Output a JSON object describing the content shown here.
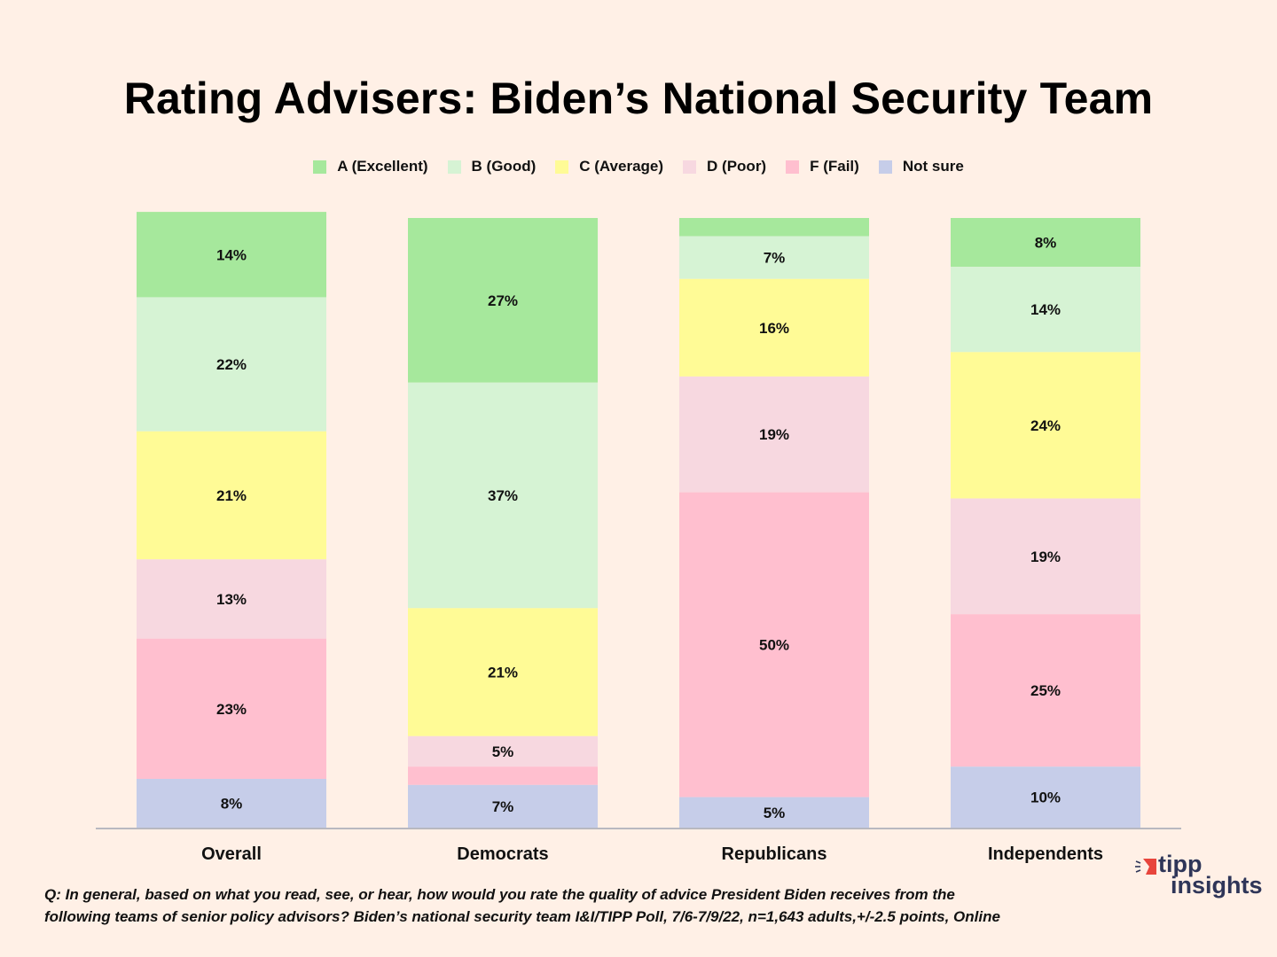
{
  "chart_data": {
    "type": "bar",
    "stacked": true,
    "orientation": "vertical",
    "title": "Rating Advisers:  Biden’s National Security Team",
    "xlabel": "",
    "ylabel": "",
    "ylim": [
      0,
      100
    ],
    "grid": false,
    "legend_position": "top-center",
    "categories": [
      "Overall",
      "Democrats",
      "Republicans",
      "Independents"
    ],
    "series": [
      {
        "name": "A (Excellent)",
        "color": "#a6e89c",
        "values": [
          14,
          27,
          3,
          8
        ],
        "labels": [
          "14%",
          "27%",
          "",
          "8%"
        ]
      },
      {
        "name": "B (Good)",
        "color": "#d6f3d4",
        "values": [
          22,
          37,
          7,
          14
        ],
        "labels": [
          "22%",
          "37%",
          "7%",
          "14%"
        ]
      },
      {
        "name": "C (Average)",
        "color": "#fffb96",
        "values": [
          21,
          21,
          16,
          24
        ],
        "labels": [
          "21%",
          "21%",
          "16%",
          "24%"
        ]
      },
      {
        "name": "D (Poor)",
        "color": "#f7d8e0",
        "values": [
          13,
          5,
          19,
          19
        ],
        "labels": [
          "13%",
          "5%",
          "19%",
          "19%"
        ]
      },
      {
        "name": "F (Fail)",
        "color": "#ffbfcf",
        "values": [
          23,
          3,
          50,
          25
        ],
        "labels": [
          "23%",
          "",
          "50%",
          "25%"
        ]
      },
      {
        "name": "Not sure",
        "color": "#c6cde9",
        "values": [
          8,
          7,
          5,
          10
        ],
        "labels": [
          "8%",
          "7%",
          "5%",
          "10%"
        ]
      }
    ]
  },
  "footnote": {
    "line1": "Q:  In general, based on what you read, see, or hear, how would you rate the quality of advice President Biden receives from the",
    "line2": "following teams of senior policy advisors?  Biden’s national security team I&I/TIPP Poll, 7/6-7/9/22, n=1,643 adults,+/-2.5 points, Online"
  },
  "logo": {
    "line1": "tipp",
    "line2": "insights",
    "accent_color": "#e8453c",
    "text_color": "#2e3558"
  },
  "colors": {
    "background": "#fff0e6",
    "axis": "#b8b8c0"
  }
}
